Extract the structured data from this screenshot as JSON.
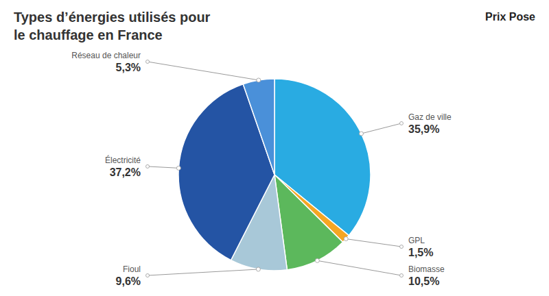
{
  "chart_data": {
    "type": "pie",
    "title": [
      "Types d’énergies utilisés pour",
      "le chauffage en France"
    ],
    "annotations": [
      "Prix Pose"
    ],
    "categories": [
      "Gaz de ville",
      "GPL",
      "Biomasse",
      "Fioul",
      "Électricité",
      "Réseau de chaleur"
    ],
    "values": [
      35.9,
      1.5,
      10.5,
      9.6,
      37.2,
      5.3
    ],
    "value_labels": [
      "35,9%",
      "1,5%",
      "10,5%",
      "9,6%",
      "37,2%",
      "5,3%"
    ],
    "colors": [
      "#29abe2",
      "#f5a623",
      "#5cb85c",
      "#a8c8d8",
      "#2454a4",
      "#4a90d9"
    ],
    "data_labels": true
  }
}
